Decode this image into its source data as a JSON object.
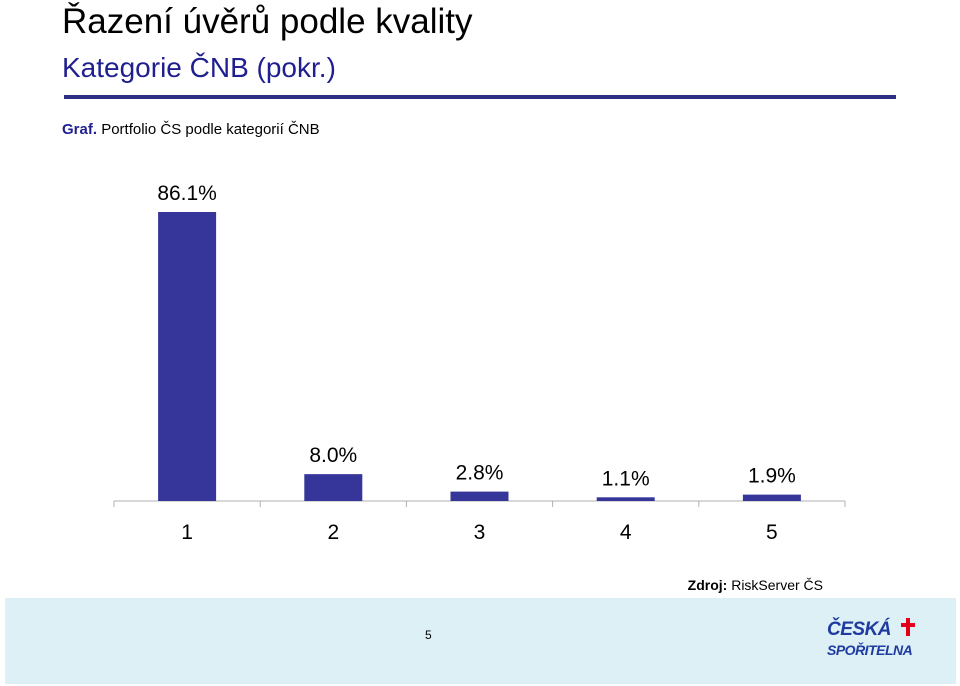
{
  "header": {
    "title": "Řazení úvěrů podle kvality",
    "subtitle": "Kategorie ČNB (pokr.)"
  },
  "caption": {
    "prefix": "Graf.",
    "text": "Portfolio ČS podle kategorií ČNB"
  },
  "chart_data": {
    "type": "bar",
    "categories": [
      "1",
      "2",
      "3",
      "4",
      "5"
    ],
    "values": [
      86.1,
      8.0,
      2.8,
      1.1,
      1.9
    ],
    "value_labels": [
      "86.1%",
      "8.0%",
      "2.8%",
      "1.1%",
      "1.9%"
    ],
    "title": "",
    "xlabel": "",
    "ylabel": "",
    "ylim": [
      0,
      100
    ],
    "grid": false,
    "legend": "none",
    "bar_color": "#35359a"
  },
  "source": {
    "label": "Zdroj:",
    "text": "RiskServer ČS"
  },
  "footer": {
    "page_number": "5",
    "logo_line1": "ČESKÁ",
    "logo_line2": "SPOŘITELNA",
    "logo_red": "#e2001a",
    "logo_blue": "#1f3aa0"
  }
}
